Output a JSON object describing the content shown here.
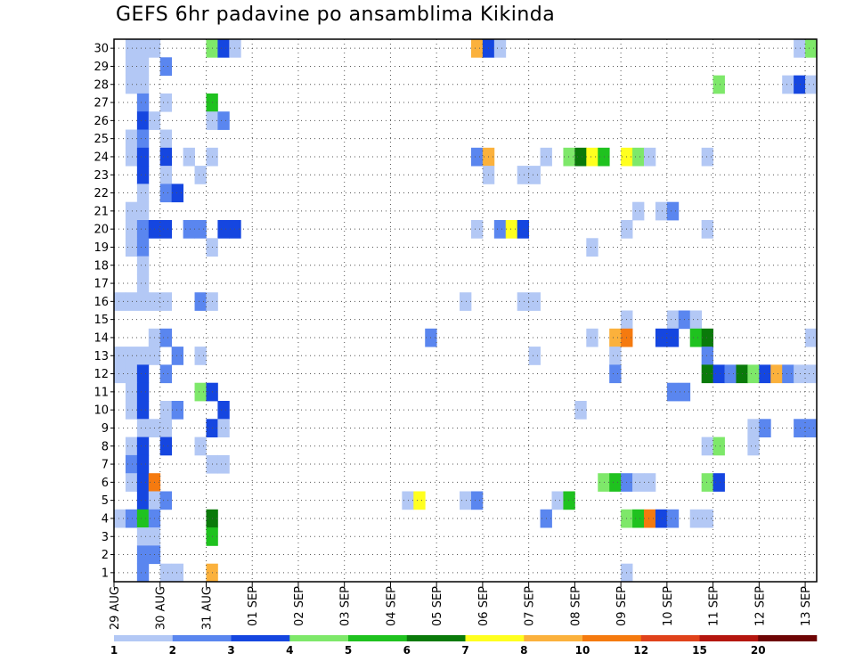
{
  "chart_data": {
    "type": "heatmap",
    "title": "GEFS 6hr padavine po ansamblima Kikinda",
    "y_categories": [
      "1",
      "2",
      "3",
      "4",
      "5",
      "6",
      "7",
      "8",
      "9",
      "10",
      "11",
      "12",
      "13",
      "14",
      "15",
      "16",
      "17",
      "18",
      "19",
      "20",
      "21",
      "22",
      "23",
      "24",
      "25",
      "26",
      "27",
      "28",
      "29",
      "30"
    ],
    "x_tick_labels": [
      "29 AUG",
      "30 AUG",
      "31 AUG",
      "01 SEP",
      "02 SEP",
      "03 SEP",
      "04 SEP",
      "05 SEP",
      "06 SEP",
      "07 SEP",
      "08 SEP",
      "09 SEP",
      "10 SEP",
      "11 SEP",
      "12 SEP",
      "13 SEP"
    ],
    "x_time_step": "6hr",
    "grid": "dotted",
    "colorbar": {
      "labels": [
        "1",
        "2",
        "3",
        "4",
        "5",
        "6",
        "7",
        "8",
        "10",
        "12",
        "15",
        "20"
      ],
      "colors": [
        "#b3c8f5",
        "#5a86ef",
        "#1546e0",
        "#7ee86a",
        "#1fc21f",
        "#0a7a0a",
        "#ffff1f",
        "#fbb13c",
        "#f57a0f",
        "#e0421b",
        "#b5160f",
        "#6e0505"
      ]
    },
    "cells": [
      [
        1,
        30,
        1
      ],
      [
        2,
        30,
        1
      ],
      [
        3,
        30,
        1
      ],
      [
        8,
        30,
        4
      ],
      [
        9,
        30,
        3
      ],
      [
        10,
        30,
        1
      ],
      [
        31,
        30,
        8
      ],
      [
        32,
        30,
        3
      ],
      [
        33,
        30,
        1
      ],
      [
        59,
        30,
        1
      ],
      [
        60,
        30,
        4
      ],
      [
        1,
        29,
        1
      ],
      [
        2,
        29,
        1
      ],
      [
        4,
        29,
        2
      ],
      [
        1,
        28,
        1
      ],
      [
        2,
        28,
        1
      ],
      [
        52,
        28,
        4
      ],
      [
        58,
        28,
        1
      ],
      [
        59,
        28,
        3
      ],
      [
        60,
        28,
        1
      ],
      [
        2,
        27,
        2
      ],
      [
        4,
        27,
        1
      ],
      [
        8,
        27,
        5
      ],
      [
        2,
        26,
        3
      ],
      [
        3,
        26,
        1
      ],
      [
        8,
        26,
        1
      ],
      [
        9,
        26,
        2
      ],
      [
        1,
        25,
        1
      ],
      [
        2,
        25,
        2
      ],
      [
        4,
        25,
        1
      ],
      [
        1,
        24,
        1
      ],
      [
        2,
        24,
        3
      ],
      [
        4,
        24,
        3
      ],
      [
        6,
        24,
        1
      ],
      [
        8,
        24,
        1
      ],
      [
        31,
        24,
        2
      ],
      [
        32,
        24,
        8
      ],
      [
        37,
        24,
        1
      ],
      [
        39,
        24,
        4
      ],
      [
        40,
        24,
        6
      ],
      [
        41,
        24,
        7
      ],
      [
        42,
        24,
        5
      ],
      [
        44,
        24,
        7
      ],
      [
        45,
        24,
        4
      ],
      [
        46,
        24,
        1
      ],
      [
        51,
        24,
        1
      ],
      [
        2,
        23,
        3
      ],
      [
        4,
        23,
        1
      ],
      [
        7,
        23,
        1
      ],
      [
        32,
        23,
        1
      ],
      [
        35,
        23,
        1
      ],
      [
        36,
        23,
        1
      ],
      [
        2,
        22,
        1
      ],
      [
        4,
        22,
        2
      ],
      [
        5,
        22,
        3
      ],
      [
        1,
        21,
        1
      ],
      [
        2,
        21,
        1
      ],
      [
        45,
        21,
        1
      ],
      [
        47,
        21,
        1
      ],
      [
        48,
        21,
        2
      ],
      [
        1,
        20,
        1
      ],
      [
        2,
        20,
        2
      ],
      [
        3,
        20,
        3
      ],
      [
        4,
        20,
        3
      ],
      [
        6,
        20,
        2
      ],
      [
        7,
        20,
        2
      ],
      [
        9,
        20,
        3
      ],
      [
        10,
        20,
        3
      ],
      [
        31,
        20,
        1
      ],
      [
        33,
        20,
        2
      ],
      [
        34,
        20,
        7
      ],
      [
        35,
        20,
        3
      ],
      [
        44,
        20,
        1
      ],
      [
        51,
        20,
        1
      ],
      [
        1,
        19,
        1
      ],
      [
        2,
        19,
        2
      ],
      [
        8,
        19,
        1
      ],
      [
        41,
        19,
        1
      ],
      [
        2,
        18,
        1
      ],
      [
        2,
        17,
        1
      ],
      [
        0,
        16,
        1
      ],
      [
        1,
        16,
        1
      ],
      [
        2,
        16,
        1
      ],
      [
        3,
        16,
        1
      ],
      [
        4,
        16,
        1
      ],
      [
        7,
        16,
        2
      ],
      [
        8,
        16,
        1
      ],
      [
        30,
        16,
        1
      ],
      [
        35,
        16,
        1
      ],
      [
        36,
        16,
        1
      ],
      [
        44,
        15,
        1
      ],
      [
        48,
        15,
        1
      ],
      [
        49,
        15,
        2
      ],
      [
        50,
        15,
        1
      ],
      [
        3,
        14,
        1
      ],
      [
        4,
        14,
        2
      ],
      [
        27,
        14,
        2
      ],
      [
        41,
        14,
        1
      ],
      [
        43,
        14,
        8
      ],
      [
        44,
        14,
        9
      ],
      [
        47,
        14,
        3
      ],
      [
        48,
        14,
        3
      ],
      [
        50,
        14,
        5
      ],
      [
        51,
        14,
        6
      ],
      [
        60,
        14,
        1
      ],
      [
        0,
        13,
        1
      ],
      [
        1,
        13,
        1
      ],
      [
        2,
        13,
        1
      ],
      [
        3,
        13,
        1
      ],
      [
        5,
        13,
        2
      ],
      [
        7,
        13,
        1
      ],
      [
        36,
        13,
        1
      ],
      [
        43,
        13,
        1
      ],
      [
        51,
        13,
        2
      ],
      [
        0,
        12,
        1
      ],
      [
        1,
        12,
        1
      ],
      [
        2,
        12,
        3
      ],
      [
        4,
        12,
        2
      ],
      [
        43,
        12,
        2
      ],
      [
        51,
        12,
        6
      ],
      [
        52,
        12,
        3
      ],
      [
        53,
        12,
        2
      ],
      [
        54,
        12,
        6
      ],
      [
        55,
        12,
        4
      ],
      [
        56,
        12,
        3
      ],
      [
        57,
        12,
        8
      ],
      [
        58,
        12,
        2
      ],
      [
        59,
        12,
        1
      ],
      [
        60,
        12,
        1
      ],
      [
        1,
        11,
        1
      ],
      [
        2,
        11,
        3
      ],
      [
        7,
        11,
        4
      ],
      [
        8,
        11,
        3
      ],
      [
        48,
        11,
        2
      ],
      [
        49,
        11,
        2
      ],
      [
        1,
        10,
        1
      ],
      [
        2,
        10,
        3
      ],
      [
        4,
        10,
        1
      ],
      [
        5,
        10,
        2
      ],
      [
        9,
        10,
        3
      ],
      [
        40,
        10,
        1
      ],
      [
        2,
        9,
        1
      ],
      [
        3,
        9,
        1
      ],
      [
        4,
        9,
        1
      ],
      [
        8,
        9,
        3
      ],
      [
        9,
        9,
        1
      ],
      [
        55,
        9,
        1
      ],
      [
        56,
        9,
        2
      ],
      [
        59,
        9,
        2
      ],
      [
        60,
        9,
        2
      ],
      [
        1,
        8,
        1
      ],
      [
        2,
        8,
        3
      ],
      [
        4,
        8,
        3
      ],
      [
        7,
        8,
        1
      ],
      [
        51,
        8,
        1
      ],
      [
        52,
        8,
        4
      ],
      [
        55,
        8,
        1
      ],
      [
        1,
        7,
        2
      ],
      [
        2,
        7,
        3
      ],
      [
        8,
        7,
        1
      ],
      [
        9,
        7,
        1
      ],
      [
        1,
        6,
        1
      ],
      [
        2,
        6,
        3
      ],
      [
        3,
        6,
        9
      ],
      [
        42,
        6,
        4
      ],
      [
        43,
        6,
        5
      ],
      [
        44,
        6,
        2
      ],
      [
        45,
        6,
        1
      ],
      [
        46,
        6,
        1
      ],
      [
        51,
        6,
        4
      ],
      [
        52,
        6,
        3
      ],
      [
        2,
        5,
        3
      ],
      [
        3,
        5,
        1
      ],
      [
        4,
        5,
        2
      ],
      [
        25,
        5,
        1
      ],
      [
        26,
        5,
        7
      ],
      [
        30,
        5,
        1
      ],
      [
        31,
        5,
        2
      ],
      [
        38,
        5,
        1
      ],
      [
        39,
        5,
        5
      ],
      [
        0,
        4,
        1
      ],
      [
        1,
        4,
        2
      ],
      [
        2,
        4,
        5
      ],
      [
        3,
        4,
        2
      ],
      [
        8,
        4,
        6
      ],
      [
        37,
        4,
        2
      ],
      [
        44,
        4,
        4
      ],
      [
        45,
        4,
        5
      ],
      [
        46,
        4,
        9
      ],
      [
        47,
        4,
        3
      ],
      [
        48,
        4,
        2
      ],
      [
        50,
        4,
        1
      ],
      [
        51,
        4,
        1
      ],
      [
        2,
        3,
        1
      ],
      [
        3,
        3,
        1
      ],
      [
        8,
        3,
        5
      ],
      [
        2,
        2,
        2
      ],
      [
        3,
        2,
        2
      ],
      [
        2,
        1,
        2
      ],
      [
        4,
        1,
        1
      ],
      [
        5,
        1,
        1
      ],
      [
        8,
        1,
        8
      ],
      [
        44,
        1,
        1
      ]
    ]
  }
}
